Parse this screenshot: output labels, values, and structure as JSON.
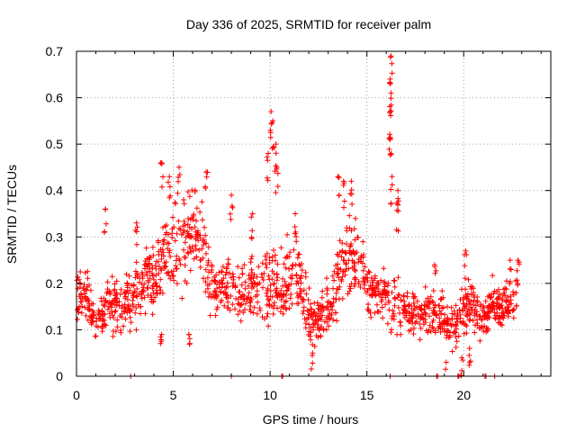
{
  "chart_data": {
    "type": "scatter",
    "title": "Day 336 of 2025, SRMTID for receiver palm",
    "xlabel": "GPS time / hours",
    "ylabel": "SRMTID / TECUs",
    "xlim": [
      0,
      24.5
    ],
    "ylim": [
      0,
      0.7
    ],
    "xticks": [
      0,
      5,
      10,
      15,
      20
    ],
    "xtick_labels": [
      "0",
      "5",
      "10",
      "15",
      "20"
    ],
    "yticks": [
      0,
      0.1,
      0.2,
      0.3,
      0.4,
      0.5,
      0.6,
      0.7
    ],
    "ytick_labels": [
      "0",
      "0.1",
      "0.2",
      "0.3",
      "0.4",
      "0.5",
      "0.6",
      "0.7"
    ],
    "grid": true,
    "marker": "+",
    "color": "#ff0000",
    "series": [
      {
        "name": "SRMTID",
        "envelope_hours": [
          0,
          0.5,
          1,
          1.5,
          2,
          2.5,
          3,
          3.5,
          4,
          4.5,
          5,
          5.5,
          6,
          6.5,
          7,
          7.5,
          8,
          8.5,
          9,
          9.5,
          10,
          10.5,
          11,
          11.5,
          12,
          12.5,
          13,
          13.5,
          14,
          14.5,
          15,
          15.5,
          16,
          16.5,
          17,
          17.5,
          18,
          18.5,
          19,
          19.5,
          20,
          20.5,
          21,
          21.5,
          22,
          22.5,
          22.8
        ],
        "envelope_median": [
          0.17,
          0.19,
          0.1,
          0.15,
          0.15,
          0.16,
          0.17,
          0.2,
          0.21,
          0.26,
          0.27,
          0.28,
          0.3,
          0.29,
          0.19,
          0.2,
          0.18,
          0.17,
          0.2,
          0.17,
          0.2,
          0.18,
          0.22,
          0.21,
          0.13,
          0.12,
          0.15,
          0.2,
          0.25,
          0.25,
          0.2,
          0.18,
          0.17,
          0.15,
          0.14,
          0.13,
          0.14,
          0.13,
          0.13,
          0.11,
          0.14,
          0.16,
          0.12,
          0.16,
          0.14,
          0.16,
          0.18
        ],
        "envelope_spread": [
          0.05,
          0.05,
          0.03,
          0.05,
          0.05,
          0.05,
          0.06,
          0.06,
          0.06,
          0.08,
          0.08,
          0.08,
          0.08,
          0.08,
          0.06,
          0.05,
          0.05,
          0.05,
          0.06,
          0.06,
          0.07,
          0.06,
          0.07,
          0.06,
          0.04,
          0.04,
          0.05,
          0.06,
          0.07,
          0.07,
          0.06,
          0.05,
          0.05,
          0.05,
          0.04,
          0.04,
          0.04,
          0.04,
          0.04,
          0.04,
          0.04,
          0.05,
          0.04,
          0.05,
          0.04,
          0.04,
          0.04
        ],
        "peaks": [
          {
            "x": 1.5,
            "y": 0.36
          },
          {
            "x": 3.1,
            "y": 0.33
          },
          {
            "x": 4.4,
            "y": 0.46
          },
          {
            "x": 4.8,
            "y": 0.43
          },
          {
            "x": 5.3,
            "y": 0.45
          },
          {
            "x": 6.7,
            "y": 0.44
          },
          {
            "x": 8.0,
            "y": 0.39
          },
          {
            "x": 9.1,
            "y": 0.35
          },
          {
            "x": 9.9,
            "y": 0.48
          },
          {
            "x": 10.05,
            "y": 0.57
          },
          {
            "x": 10.15,
            "y": 0.55
          },
          {
            "x": 10.3,
            "y": 0.5
          },
          {
            "x": 10.35,
            "y": 0.45
          },
          {
            "x": 11.3,
            "y": 0.35
          },
          {
            "x": 13.5,
            "y": 0.43
          },
          {
            "x": 13.8,
            "y": 0.42
          },
          {
            "x": 14.2,
            "y": 0.42
          },
          {
            "x": 16.25,
            "y": 0.69
          },
          {
            "x": 16.2,
            "y": 0.64
          },
          {
            "x": 16.25,
            "y": 0.61
          },
          {
            "x": 16.2,
            "y": 0.57
          },
          {
            "x": 16.2,
            "y": 0.51
          },
          {
            "x": 16.3,
            "y": 0.43
          },
          {
            "x": 16.6,
            "y": 0.4
          },
          {
            "x": 16.6,
            "y": 0.37
          },
          {
            "x": 18.5,
            "y": 0.24
          },
          {
            "x": 20.1,
            "y": 0.27
          },
          {
            "x": 22.4,
            "y": 0.25
          },
          {
            "x": 22.8,
            "y": 0.25
          },
          {
            "x": 4.4,
            "y": 0.09
          },
          {
            "x": 5.8,
            "y": 0.09
          },
          {
            "x": 12.2,
            "y": 0.05
          },
          {
            "x": 19.1,
            "y": 0.03
          },
          {
            "x": 19.9,
            "y": 0.04
          },
          {
            "x": 20.3,
            "y": 0.06
          }
        ],
        "zero_points": [
          2.8,
          8.0,
          10.6,
          10.65,
          16.2,
          18.6,
          18.65,
          19.7,
          19.75,
          21.1,
          21.15,
          21.6
        ]
      }
    ]
  }
}
